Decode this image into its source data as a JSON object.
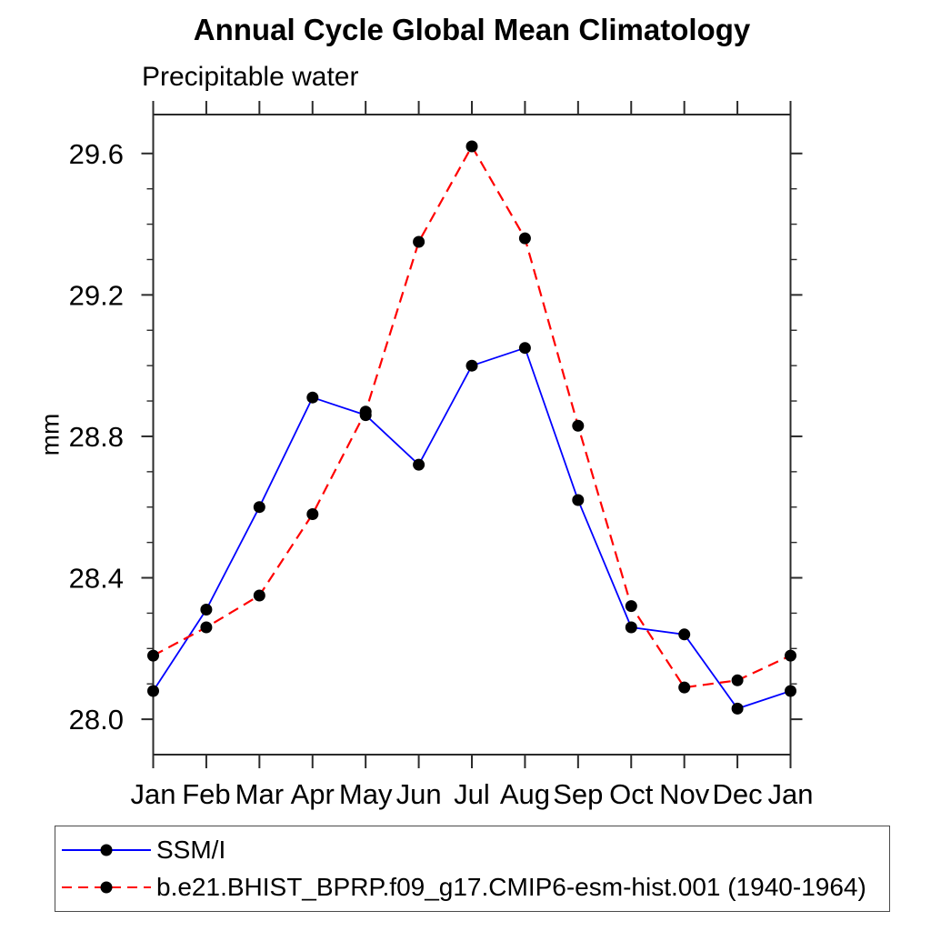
{
  "title": "Annual Cycle Global Mean Climatology",
  "subtitle": "Precipitable water",
  "y_axis_label": "mm",
  "chart_data": {
    "type": "line",
    "title": "Annual Cycle Global Mean Climatology",
    "subtitle": "Precipitable water",
    "ylabel": "mm",
    "xlabel": "",
    "categories": [
      "Jan",
      "Feb",
      "Mar",
      "Apr",
      "May",
      "Jun",
      "Jul",
      "Aug",
      "Sep",
      "Oct",
      "Nov",
      "Dec",
      "Jan"
    ],
    "ylim": [
      27.9,
      29.71
    ],
    "yticks_major": [
      28.0,
      28.4,
      28.8,
      29.2,
      29.6
    ],
    "ytick_labels": [
      "28.0",
      "28.4",
      "28.8",
      "29.2",
      "29.6"
    ],
    "ytick_minor_step": 0.1,
    "grid": false,
    "legend_position": "bottom-box",
    "marker": "filled-circle",
    "marker_color": "#000000",
    "series": [
      {
        "name": "SSM/I",
        "color": "#0000ff",
        "style": "solid",
        "values": [
          28.08,
          28.31,
          28.6,
          28.91,
          28.86,
          28.72,
          29.0,
          29.05,
          28.62,
          28.26,
          28.24,
          28.03,
          28.08
        ]
      },
      {
        "name": "b.e21.BHIST_BPRP.f09_g17.CMIP6-esm-hist.001 (1940-1964)",
        "color": "#ff0000",
        "style": "dashed",
        "values": [
          28.18,
          28.26,
          28.35,
          28.58,
          28.87,
          29.35,
          29.62,
          29.36,
          28.83,
          28.32,
          28.09,
          28.11,
          28.18
        ]
      }
    ]
  }
}
